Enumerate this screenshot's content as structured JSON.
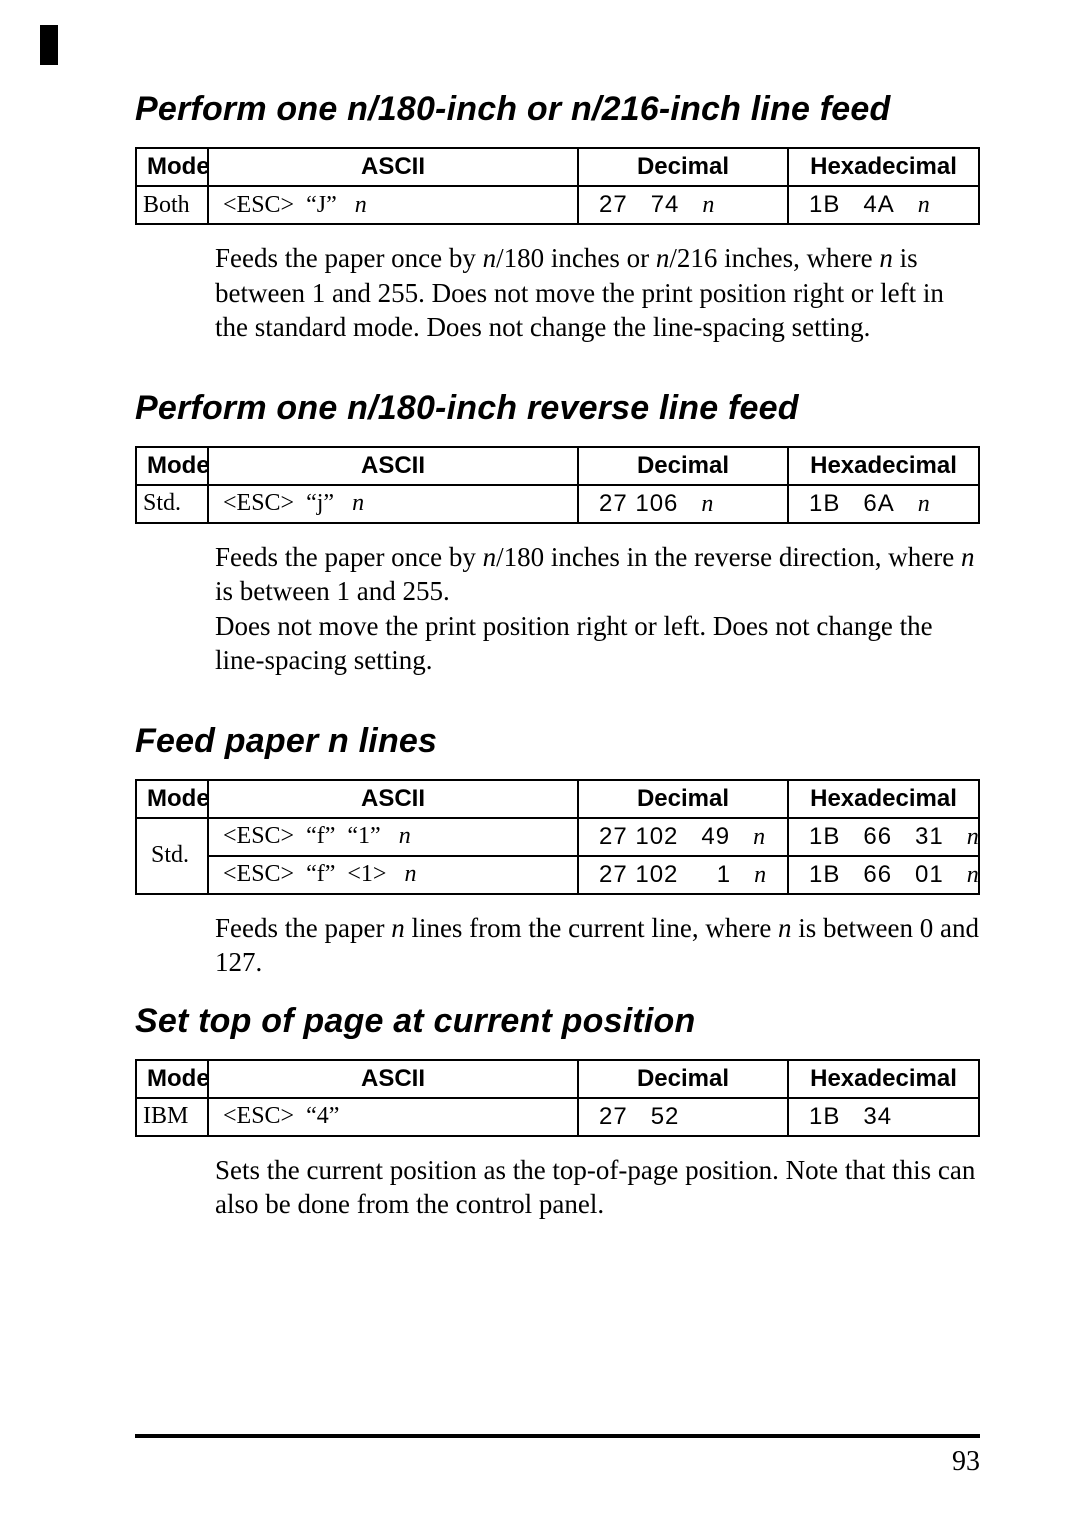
{
  "page_number": "93",
  "columns": {
    "mode": "Mode",
    "ascii": "ASCII",
    "decimal": "Decimal",
    "hex": "Hexadecimal"
  },
  "sections": [
    {
      "title": "Perform one n/180-inch or n/216-inch line feed",
      "rows": [
        {
          "mode": "Both",
          "ascii_html": "&lt;ESC&gt;&nbsp;&nbsp;&ldquo;J&rdquo;&nbsp;&nbsp;&nbsp;<span class='ital'>n</span>",
          "dec_html": "27&nbsp;&nbsp;&nbsp;74&nbsp;&nbsp;&nbsp;<span class='ital'>n</span>",
          "hex_html": "1B&nbsp;&nbsp;&nbsp;4A&nbsp;&nbsp;&nbsp;<span class='ital'>n</span>"
        }
      ],
      "desc_html": "Feeds the paper once by <span class='ital'>n</span>/180 inches or <span class='ital'>n</span>/216 inches, where <span class='ital'>n</span> is between 1 and 255. Does not move the print position right or left in the standard mode. Does not change the line-spacing setting."
    },
    {
      "title": "Perform one n/180-inch reverse line feed",
      "rows": [
        {
          "mode": "Std.",
          "ascii_html": "&lt;ESC&gt;&nbsp;&nbsp;&ldquo;j&rdquo;&nbsp;&nbsp;&nbsp;<span class='ital'>n</span>",
          "dec_html": "27&nbsp;106&nbsp;&nbsp;&nbsp;<span class='ital'>n</span>",
          "hex_html": "1B&nbsp;&nbsp;&nbsp;6A&nbsp;&nbsp;&nbsp;<span class='ital'>n</span>"
        }
      ],
      "desc_html": "Feeds the paper once by <span class='ital'>n</span>/180 inches in the reverse direction, where <span class='ital'>n</span> is between 1 and 255.<br>Does not move the print position right or left. Does not change the line-spacing setting."
    },
    {
      "title": "Feed paper n lines",
      "mode_rowspan": 2,
      "rows": [
        {
          "mode": "Std.",
          "ascii_html": "&lt;ESC&gt;&nbsp;&nbsp;&ldquo;f&rdquo;&nbsp;&nbsp;&ldquo;1&rdquo;&nbsp;&nbsp;&nbsp;<span class='ital'>n</span>",
          "dec_html": "27&nbsp;102&nbsp;&nbsp;&nbsp;49&nbsp;&nbsp;&nbsp;<span class='ital'>n</span>",
          "hex_html": "1B&nbsp;&nbsp;&nbsp;66&nbsp;&nbsp;&nbsp;31&nbsp;&nbsp;&nbsp;<span class='ital'>n</span>"
        },
        {
          "mode": "",
          "ascii_html": "&lt;ESC&gt;&nbsp;&nbsp;&ldquo;f&rdquo;&nbsp;&nbsp;&lt;1&gt;&nbsp;&nbsp;&nbsp;<span class='ital'>n</span>",
          "dec_html": "27&nbsp;102&nbsp;&nbsp;&nbsp;&nbsp;&nbsp;1&nbsp;&nbsp;&nbsp;<span class='ital'>n</span>",
          "hex_html": "1B&nbsp;&nbsp;&nbsp;66&nbsp;&nbsp;&nbsp;01&nbsp;&nbsp;&nbsp;<span class='ital'>n</span>"
        }
      ],
      "desc_html": "Feeds the paper <span class='ital'>n</span> lines from the current line, where <span class='ital'>n</span> is between 0 and 127.",
      "desc_short": true
    },
    {
      "title": "Set top of page at current position",
      "rows": [
        {
          "mode": "IBM",
          "ascii_html": "&lt;ESC&gt;&nbsp;&nbsp;&ldquo;4&rdquo;",
          "dec_html": "27&nbsp;&nbsp;&nbsp;52",
          "hex_html": "1B&nbsp;&nbsp;&nbsp;34"
        }
      ],
      "desc_html": "Sets the current position as the top-of-page position. Note that this can also be done from the control panel."
    }
  ]
}
